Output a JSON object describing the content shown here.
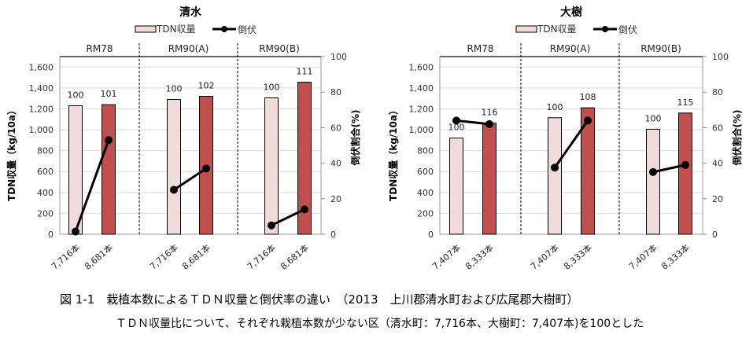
{
  "chart_data": [
    {
      "type": "bar+line",
      "title": "清水",
      "legend": {
        "bar": "TDN収量",
        "line": "倒伏",
        "placement": "top"
      },
      "groups": [
        "RM78",
        "RM90(A)",
        "RM90(B)"
      ],
      "categories": [
        "7,716本",
        "8,681本",
        "7,716本",
        "8,681本",
        "7,716本",
        "8,681本"
      ],
      "bar_values": [
        1230,
        1240,
        1290,
        1320,
        1305,
        1455
      ],
      "bar_labels": [
        "100",
        "101",
        "100",
        "102",
        "100",
        "111"
      ],
      "line_values": [
        1.5,
        53,
        25,
        37,
        5,
        14
      ],
      "ylabel": "TDN収量（kg/10a）",
      "y2label": "倒伏割合(%)",
      "ylim": [
        0,
        1700
      ],
      "yticks": [
        "0",
        "200",
        "400",
        "600",
        "800",
        "1,000",
        "1,200",
        "1,400",
        "1,600"
      ],
      "y2lim": [
        0,
        100
      ],
      "y2ticks": [
        "0",
        "20",
        "40",
        "60",
        "80",
        "100"
      ],
      "grid": true
    },
    {
      "type": "bar+line",
      "title": "大樹",
      "legend": {
        "bar": "TDN収量",
        "line": "倒伏",
        "placement": "top"
      },
      "groups": [
        "RM78",
        "RM90(A)",
        "RM90(B)"
      ],
      "categories": [
        "7,407本",
        "8,333本",
        "7,407本",
        "8,333本",
        "7,407本",
        "8,333本"
      ],
      "bar_values": [
        920,
        1065,
        1115,
        1210,
        1005,
        1160
      ],
      "bar_labels": [
        "100",
        "116",
        "100",
        "108",
        "100",
        "115"
      ],
      "line_values": [
        64,
        62,
        37.5,
        64,
        35,
        39
      ],
      "ylabel": "TDN収量（kg/10a）",
      "y2label": "倒伏割合(%)",
      "ylim": [
        0,
        1700
      ],
      "yticks": [
        "0",
        "200",
        "400",
        "600",
        "800",
        "1,000",
        "1,200",
        "1,400",
        "1,600"
      ],
      "y2lim": [
        0,
        100
      ],
      "y2ticks": [
        "0",
        "20",
        "40",
        "60",
        "80",
        "100"
      ],
      "grid": true
    }
  ],
  "colors": {
    "bar_low": "#f2dcdb",
    "bar_high": "#c0504d",
    "line": "#000000",
    "grid": "#d9d9d9"
  },
  "caption": {
    "line1": "図 1-1　栽植本数によるＴＤＮ収量と倒伏率の違い　（2013　上川郡清水町および広尾郡大樹町）",
    "line2": "ＴＤＮ収量比について、それぞれ栽植本数が少ない区（清水町：7,716本、大樹町：7,407本)を100とした"
  }
}
